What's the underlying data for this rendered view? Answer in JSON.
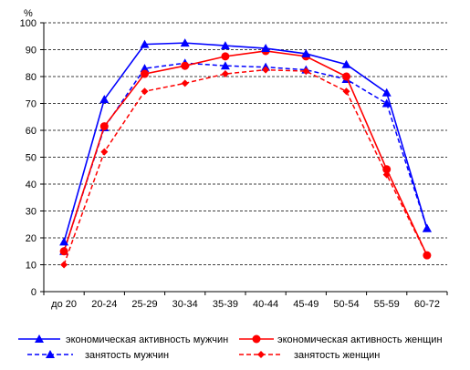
{
  "chart_data": {
    "type": "line",
    "title": "",
    "xlabel": "",
    "ylabel": "%",
    "ylim": [
      0,
      100
    ],
    "yticks": [
      0,
      10,
      20,
      30,
      40,
      50,
      60,
      70,
      80,
      90,
      100
    ],
    "grid": "horizontal-dashed",
    "legend_position": "bottom",
    "categories": [
      "до 20",
      "20-24",
      "25-29",
      "30-34",
      "35-39",
      "40-44",
      "45-49",
      "50-54",
      "55-59",
      "60-72"
    ],
    "series": [
      {
        "name": "экономическая активность мужчин",
        "color": "#0000ff",
        "dash": "solid",
        "marker": "triangle",
        "values": [
          18.5,
          71.5,
          92,
          92.5,
          91.5,
          90.5,
          88.5,
          84.5,
          74,
          23.5
        ]
      },
      {
        "name": "экономическая активность женщин",
        "color": "#ff0000",
        "dash": "solid",
        "marker": "circle",
        "values": [
          15,
          61.5,
          81,
          84,
          87.5,
          89.5,
          87.5,
          80,
          45.5,
          13.5
        ]
      },
      {
        "name": "занятость мужчин",
        "color": "#0000ff",
        "dash": "dashed",
        "marker": "triangle",
        "values": [
          15,
          61,
          83,
          85,
          84,
          83.5,
          82.5,
          79,
          70,
          23.5
        ]
      },
      {
        "name": "занятость женщин",
        "color": "#ff0000",
        "dash": "dashed",
        "marker": "diamond",
        "values": [
          10,
          52,
          74.5,
          77.5,
          81,
          82.5,
          82,
          74.5,
          43.5,
          13.5
        ]
      }
    ]
  }
}
